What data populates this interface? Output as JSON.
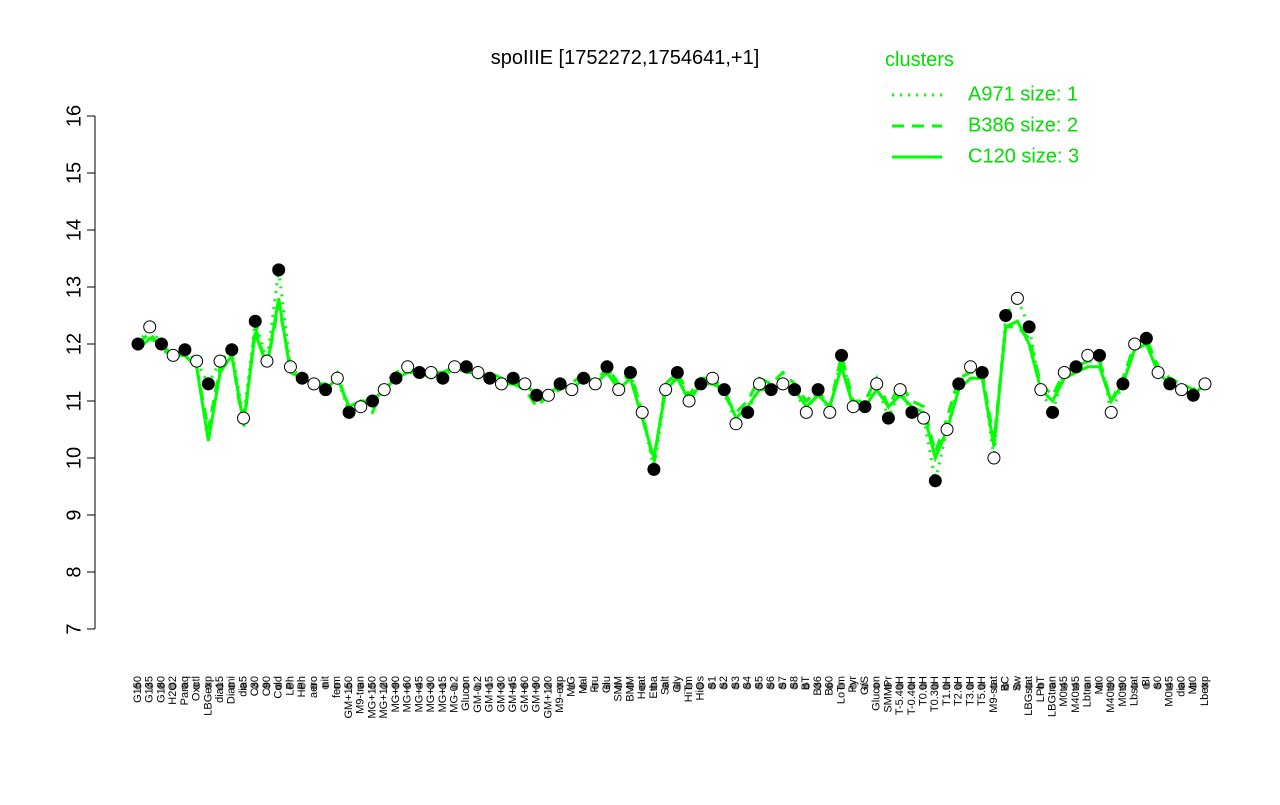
{
  "chart_data": {
    "type": "line",
    "title": "spoIIIE [1752272,1754641,+1]",
    "categories": [
      "G150",
      "G135",
      "G180",
      "H2O2",
      "Paraq",
      "Oxctl",
      "LBGexp",
      "dia15",
      "Diami",
      "dia5",
      "C30",
      "C90",
      "Cold",
      "LPh",
      "HPh",
      "aero",
      "nit",
      "ferm",
      "GM+150",
      "M9-tran",
      "MG+150",
      "MG+120",
      "MG+90",
      "MG+60",
      "MG+45",
      "MG+30",
      "MG+15",
      "MG-0.2",
      "Glucon",
      "GM-0.2",
      "GM+15",
      "GM+30",
      "GM+45",
      "GM+60",
      "GM+90",
      "GM+120",
      "M9-exp",
      "M/G",
      "Mal",
      "Fru",
      "Glu",
      "SMM",
      "BMM",
      "Heat",
      "Etha",
      "Salt",
      "Gly",
      "HiTm",
      "HiOs",
      "S1",
      "S2",
      "S3",
      "S4",
      "S5",
      "S6",
      "S7",
      "S8",
      "BT",
      "B36",
      "B60",
      "LoTm",
      "Pyr",
      "G/S",
      "Glucon",
      "SMMPr",
      "T-5.40H",
      "T-0.40H",
      "T0.0H",
      "T0.30H",
      "T1.0H",
      "T2.0H",
      "T3.0H",
      "T5.0H",
      "M9-stat",
      "BC",
      "Sw",
      "LBGstat",
      "LPhT",
      "LBGtran",
      "M0t45",
      "M40t45",
      "Lbtran",
      "Mt0",
      "M40t90",
      "M0t90",
      "Lbstat",
      "BI",
      "S0",
      "M0t45",
      "dia0",
      "Mt0",
      "Lbexp"
    ],
    "values": [
      12.0,
      12.3,
      12.0,
      11.8,
      11.9,
      11.7,
      11.3,
      11.7,
      11.9,
      10.7,
      12.4,
      11.7,
      13.3,
      11.6,
      11.4,
      11.3,
      11.2,
      11.4,
      10.8,
      10.9,
      11.0,
      11.2,
      11.4,
      11.6,
      11.5,
      11.5,
      11.4,
      11.6,
      11.6,
      11.5,
      11.4,
      11.3,
      11.4,
      11.3,
      11.1,
      11.1,
      11.3,
      11.2,
      11.4,
      11.3,
      11.6,
      11.2,
      11.5,
      10.8,
      9.8,
      11.2,
      11.5,
      11.0,
      11.3,
      11.4,
      11.2,
      10.6,
      10.8,
      11.3,
      11.2,
      11.3,
      11.2,
      10.8,
      11.2,
      10.8,
      11.8,
      10.9,
      10.9,
      11.3,
      10.7,
      11.2,
      10.8,
      10.7,
      9.6,
      10.5,
      11.3,
      11.6,
      11.5,
      10.0,
      12.5,
      12.8,
      12.3,
      11.2,
      10.8,
      11.5,
      11.6,
      11.8,
      11.8,
      10.8,
      11.3,
      12.0,
      12.1,
      11.5,
      11.3,
      11.2,
      11.1,
      11.3
    ],
    "point_color": "#000000",
    "legend_title": "clusters",
    "series": [
      {
        "name": "A971 size: 1",
        "color": "#00ff00",
        "style": "dotted",
        "values": [
          12.0,
          12.3,
          12.0,
          11.8,
          11.9,
          11.7,
          11.3,
          11.7,
          11.9,
          10.7,
          12.4,
          11.7,
          13.3,
          11.6,
          11.4,
          11.3,
          11.2,
          11.4,
          10.8,
          10.9,
          11.0,
          11.2,
          11.4,
          11.6,
          11.5,
          11.5,
          11.4,
          11.6,
          11.6,
          11.5,
          11.4,
          11.3,
          11.4,
          11.3,
          11.1,
          11.1,
          11.3,
          11.2,
          11.4,
          11.3,
          11.6,
          11.2,
          11.5,
          10.8,
          9.8,
          11.2,
          11.5,
          11.0,
          11.3,
          11.4,
          11.2,
          10.6,
          10.8,
          11.3,
          11.2,
          11.3,
          11.2,
          10.8,
          11.2,
          10.8,
          11.8,
          10.9,
          10.9,
          11.3,
          10.7,
          11.2,
          10.8,
          10.7,
          9.6,
          10.5,
          11.3,
          11.6,
          11.5,
          10.0,
          12.5,
          12.8,
          12.3,
          11.2,
          10.8,
          11.5,
          11.6,
          11.8,
          11.8,
          10.8,
          11.3,
          12.0,
          12.1,
          11.5,
          11.3,
          11.2,
          11.1,
          11.3
        ]
      },
      {
        "name": "B386 size: 2",
        "color": "#00ff00",
        "style": "dashed",
        "values": [
          12.0,
          12.2,
          11.9,
          11.8,
          11.8,
          11.6,
          10.5,
          11.6,
          11.8,
          10.5,
          12.3,
          11.6,
          12.7,
          11.6,
          11.4,
          11.3,
          11.3,
          11.5,
          10.8,
          11.0,
          10.8,
          11.3,
          11.5,
          11.6,
          11.5,
          11.4,
          11.5,
          11.6,
          11.6,
          11.4,
          11.5,
          11.4,
          11.3,
          11.2,
          10.9,
          11.1,
          11.2,
          11.3,
          11.5,
          11.3,
          11.6,
          11.3,
          11.5,
          10.8,
          9.9,
          11.3,
          11.5,
          11.1,
          11.4,
          11.4,
          11.1,
          10.8,
          11.0,
          11.4,
          11.3,
          11.5,
          11.3,
          11.0,
          11.2,
          10.9,
          11.8,
          11.0,
          11.0,
          11.4,
          10.9,
          11.3,
          11.0,
          10.9,
          10.1,
          10.7,
          11.4,
          11.5,
          11.5,
          10.3,
          12.3,
          12.3,
          12.1,
          11.3,
          11.1,
          11.5,
          11.6,
          11.7,
          11.7,
          11.0,
          11.4,
          12.0,
          12.1,
          11.6,
          11.4,
          11.3,
          11.2,
          11.4
        ]
      },
      {
        "name": "C120 size: 3",
        "color": "#00ff00",
        "style": "solid",
        "values": [
          11.9,
          12.1,
          12.0,
          11.8,
          11.8,
          11.6,
          10.3,
          11.5,
          11.8,
          10.6,
          12.2,
          11.6,
          12.8,
          11.5,
          11.4,
          11.3,
          11.2,
          11.4,
          10.9,
          11.0,
          11.0,
          11.2,
          11.4,
          11.5,
          11.5,
          11.5,
          11.5,
          11.6,
          11.5,
          11.5,
          11.4,
          11.3,
          11.3,
          11.3,
          11.1,
          11.1,
          11.3,
          11.2,
          11.4,
          11.3,
          11.5,
          11.2,
          11.4,
          10.7,
          10.0,
          11.2,
          11.4,
          11.0,
          11.3,
          11.3,
          11.2,
          10.7,
          10.9,
          11.2,
          11.2,
          11.3,
          11.2,
          10.9,
          11.1,
          10.9,
          11.6,
          10.9,
          10.9,
          11.2,
          10.9,
          11.1,
          10.9,
          10.8,
          10.0,
          10.5,
          11.2,
          11.4,
          11.4,
          10.2,
          12.3,
          12.4,
          12.0,
          11.2,
          11.0,
          11.4,
          11.5,
          11.6,
          11.6,
          11.0,
          11.3,
          11.9,
          12.0,
          11.5,
          11.3,
          11.2,
          11.1,
          11.3
        ]
      }
    ],
    "ylim": [
      7,
      16
    ],
    "yticks": [
      7,
      8,
      9,
      10,
      11,
      12,
      13,
      14,
      15,
      16
    ]
  }
}
